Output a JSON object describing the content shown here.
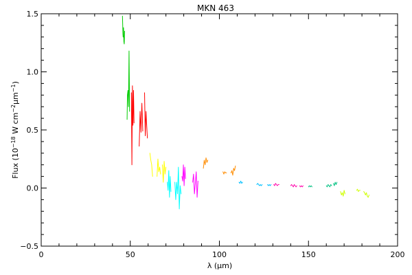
{
  "chart_data": {
    "type": "line",
    "title": "MKN 463",
    "xlabel": "λ (μm)",
    "ylabel_html": "Flux (10<tspan baseline-shift=\"super\" font-size=\"8\">−18</tspan> W cm<tspan baseline-shift=\"super\" font-size=\"8\">−2</tspan>μm<tspan baseline-shift=\"super\" font-size=\"8\">−1</tspan>)",
    "xlim": [
      0,
      200
    ],
    "ylim": [
      -0.5,
      1.5
    ],
    "x_ticks": [
      0,
      50,
      100,
      150,
      200
    ],
    "y_ticks": [
      -0.5,
      0.0,
      0.5,
      1.0,
      1.5
    ],
    "x_tick_labels": [
      "0",
      "50",
      "100",
      "150",
      "200"
    ],
    "y_tick_labels": [
      "−0.5",
      "0.0",
      "0.5",
      "1.0",
      "1.5"
    ],
    "series": [
      {
        "color": "#00cc00",
        "x": [
          45.6,
          45.9,
          46.0,
          46.2,
          46.4,
          46.6,
          46.8
        ],
        "y": [
          1.48,
          1.32,
          1.3,
          1.38,
          1.26,
          1.24,
          1.35
        ]
      },
      {
        "color": "#00cc00",
        "x": [
          48.2,
          48.4,
          48.7,
          49.0,
          49.3,
          49.6
        ],
        "y": [
          0.59,
          0.8,
          0.84,
          0.7,
          1.18,
          0.66
        ]
      },
      {
        "color": "#ff0000",
        "x": [
          50.6,
          50.9,
          51.2,
          51.5,
          51.8,
          52.1
        ],
        "y": [
          0.82,
          0.2,
          0.88,
          0.54,
          0.84,
          0.56
        ]
      },
      {
        "color": "#ff0000",
        "x": [
          55.0,
          55.5,
          56.0,
          56.5,
          57.0
        ],
        "y": [
          0.36,
          0.66,
          0.48,
          0.73,
          0.49
        ]
      },
      {
        "color": "#ff0000",
        "x": [
          58.0,
          58.4,
          58.8,
          59.2,
          59.6
        ],
        "y": [
          0.82,
          0.45,
          0.66,
          0.54,
          0.43
        ]
      },
      {
        "color": "#ffff00",
        "x": [
          61.0,
          61.5,
          62.0,
          62.5
        ],
        "y": [
          0.3,
          0.24,
          0.2,
          0.1
        ]
      },
      {
        "color": "#ffff00",
        "x": [
          65.0,
          65.5,
          66.0,
          66.5,
          67.0
        ],
        "y": [
          0.1,
          0.25,
          0.14,
          0.18,
          0.12
        ]
      },
      {
        "color": "#ffff00",
        "x": [
          68.0,
          68.5,
          69.0,
          69.5,
          70.0
        ],
        "y": [
          0.2,
          0.05,
          0.23,
          0.12,
          0.18
        ]
      },
      {
        "color": "#00ffff",
        "x": [
          70.8,
          71.2,
          71.6,
          72.0,
          72.4,
          72.8
        ],
        "y": [
          0.05,
          -0.02,
          0.15,
          -0.08,
          0.1,
          -0.03
        ]
      },
      {
        "color": "#00ffff",
        "x": [
          75.0,
          75.5,
          76.0,
          76.5,
          77.0,
          77.5,
          78.0,
          78.5
        ],
        "y": [
          0.05,
          -0.1,
          0.05,
          -0.05,
          0.18,
          -0.18,
          0.02,
          -0.05
        ]
      },
      {
        "color": "#ff00ff",
        "x": [
          79.0,
          79.4,
          79.8,
          80.2,
          80.6,
          81.0
        ],
        "y": [
          0.1,
          0.06,
          0.2,
          0.02,
          0.18,
          0.08
        ]
      },
      {
        "color": "#ff00ff",
        "x": [
          85.0,
          85.5,
          86.0,
          86.5,
          87.0,
          87.5,
          88.0
        ],
        "y": [
          0.05,
          0.12,
          -0.05,
          0.04,
          0.14,
          -0.08,
          0.06
        ]
      },
      {
        "color": "#ff8c00",
        "x": [
          91.0,
          91.5,
          92.0,
          92.5,
          93.0,
          93.5
        ],
        "y": [
          0.17,
          0.24,
          0.2,
          0.26,
          0.22,
          0.24
        ]
      },
      {
        "color": "#ff8c00",
        "x": [
          102.0,
          102.5,
          103.0,
          103.5,
          104.0
        ],
        "y": [
          0.14,
          0.12,
          0.14,
          0.13,
          0.13
        ]
      },
      {
        "color": "#ff8c00",
        "x": [
          106.5,
          107.0,
          107.5,
          108.0,
          108.5,
          109.0
        ],
        "y": [
          0.13,
          0.15,
          0.11,
          0.17,
          0.15,
          0.19
        ]
      },
      {
        "color": "#00bfff",
        "x": [
          111.0,
          111.5,
          112.0,
          112.5,
          113.0
        ],
        "y": [
          0.05,
          0.04,
          0.06,
          0.04,
          0.05
        ]
      },
      {
        "color": "#00bfff",
        "x": [
          121.0,
          121.5,
          122.0,
          122.5,
          123.0,
          123.5,
          124.0
        ],
        "y": [
          0.03,
          0.04,
          0.03,
          0.02,
          0.03,
          0.02,
          0.03
        ]
      },
      {
        "color": "#00bfff",
        "x": [
          127.0,
          127.5,
          128.0,
          128.5,
          129.0
        ],
        "y": [
          0.03,
          0.02,
          0.03,
          0.02,
          0.03
        ]
      },
      {
        "color": "#ff00aa",
        "x": [
          130.5,
          131.0,
          131.5,
          132.0,
          132.5,
          133.0,
          133.5
        ],
        "y": [
          0.03,
          0.02,
          0.04,
          0.03,
          0.02,
          0.03,
          0.03
        ]
      },
      {
        "color": "#ff00aa",
        "x": [
          140.0,
          140.5,
          141.0,
          141.5,
          142.0,
          142.5,
          143.0,
          143.5
        ],
        "y": [
          0.02,
          0.03,
          0.02,
          0.01,
          0.03,
          0.02,
          0.01,
          0.02
        ]
      },
      {
        "color": "#ff00aa",
        "x": [
          145.0,
          145.5,
          146.0,
          146.5,
          147.0
        ],
        "y": [
          0.02,
          0.01,
          0.02,
          0.01,
          0.02
        ]
      },
      {
        "color": "#00c080",
        "x": [
          150.0,
          150.5,
          151.0,
          151.5,
          152.0
        ],
        "y": [
          0.01,
          0.02,
          0.01,
          0.02,
          0.01
        ]
      },
      {
        "color": "#00c080",
        "x": [
          160.0,
          160.5,
          161.0,
          161.5,
          162.0,
          162.5,
          163.0
        ],
        "y": [
          0.02,
          0.01,
          0.03,
          0.02,
          0.01,
          0.03,
          0.02
        ]
      },
      {
        "color": "#00c080",
        "x": [
          164.0,
          164.5,
          165.0,
          165.5,
          166.0
        ],
        "y": [
          0.04,
          0.02,
          0.05,
          0.03,
          0.05
        ]
      },
      {
        "color": "#cfff00",
        "x": [
          168.0,
          168.5,
          169.0,
          169.5,
          170.0,
          170.5
        ],
        "y": [
          -0.03,
          -0.06,
          -0.04,
          -0.07,
          -0.02,
          -0.05
        ]
      },
      {
        "color": "#cfff00",
        "x": [
          177.0,
          177.5,
          178.0,
          178.5,
          179.0
        ],
        "y": [
          -0.02,
          -0.01,
          -0.03,
          -0.02,
          -0.02
        ]
      },
      {
        "color": "#cfff00",
        "x": [
          181.0,
          181.5,
          182.0,
          182.5,
          183.0,
          183.5,
          184.0
        ],
        "y": [
          -0.03,
          -0.04,
          -0.06,
          -0.04,
          -0.07,
          -0.08,
          -0.06
        ]
      }
    ]
  }
}
